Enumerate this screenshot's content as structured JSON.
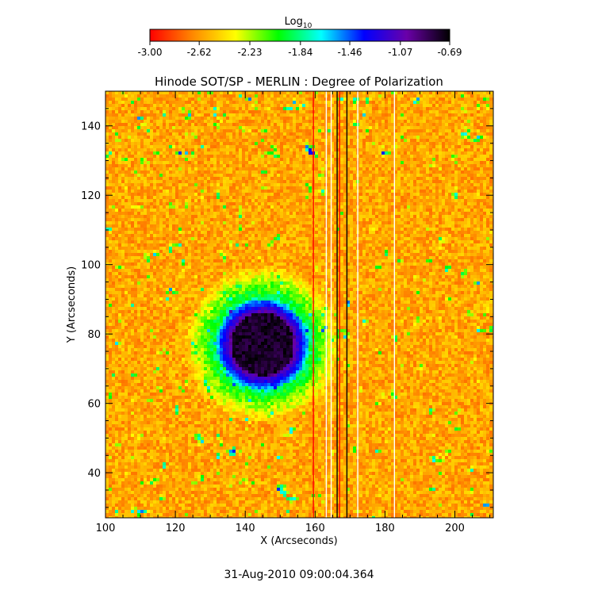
{
  "chart_data": {
    "type": "heatmap",
    "title": "Hinode SOT/SP - MERLIN : Degree of Polarization",
    "xlabel": "X (Arcseconds)",
    "ylabel": "Y (Arcseconds)",
    "xlim": [
      100,
      211
    ],
    "ylim": [
      27,
      150
    ],
    "xticks": [
      "100",
      "120",
      "140",
      "160",
      "180",
      "200"
    ],
    "yticks": [
      "40",
      "60",
      "80",
      "100",
      "120",
      "140"
    ],
    "x_tick_values": [
      100,
      120,
      140,
      160,
      180,
      200
    ],
    "y_tick_values": [
      40,
      60,
      80,
      100,
      120,
      140
    ],
    "colorbar": {
      "label_base": "Log",
      "label_sub": "10",
      "ticks": [
        "-3.00",
        "-2.62",
        "-2.23",
        "-1.84",
        "-1.46",
        "-1.07",
        "-0.69"
      ],
      "tick_values": [
        -3.0,
        -2.62,
        -2.23,
        -1.84,
        -1.46,
        -1.07,
        -0.69
      ],
      "range": [
        -3.0,
        -0.69
      ],
      "colormap_stops": [
        "#ff0000",
        "#ff8800",
        "#ffff00",
        "#00ff00",
        "#00ffff",
        "#0000ff",
        "#6a00a8",
        "#000000"
      ]
    },
    "sunspot": {
      "center": [
        145,
        77
      ],
      "umbra_radius": 9,
      "penumbra_radius": 13
    },
    "background_level": -2.5,
    "vertical_lines": [
      {
        "x": 159.5,
        "color": "#ff0000"
      },
      {
        "x": 163.2,
        "color": "#ffffff"
      },
      {
        "x": 164.6,
        "color": "#ffffff"
      },
      {
        "x": 166.3,
        "color": "#000000"
      },
      {
        "x": 167.0,
        "color": "#ff0000"
      },
      {
        "x": 169.1,
        "color": "#000000"
      },
      {
        "x": 172.2,
        "color": "#ffffff"
      },
      {
        "x": 182.7,
        "color": "#ffffff"
      }
    ]
  },
  "footer": {
    "timestamp": "31-Aug-2010 09:00:04.364"
  }
}
